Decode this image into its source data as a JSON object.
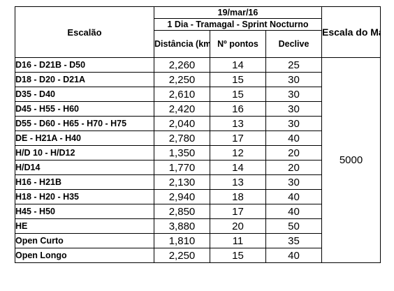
{
  "header": {
    "escalao": "Escalão",
    "date": "19/mar/16",
    "event": "1 Dia - Tramagal - Sprint Nocturno",
    "distancia": "Distância (km)",
    "pontos": "Nº pontos",
    "declive": "Declive",
    "escala": "Escala do Mapa"
  },
  "escala_value": "5000",
  "rows": [
    {
      "escalao": "D16 - D21B - D50",
      "distancia": "2,260",
      "pontos": "14",
      "declive": "25"
    },
    {
      "escalao": "D18 - D20 - D21A",
      "distancia": "2,250",
      "pontos": "15",
      "declive": "30"
    },
    {
      "escalao": "D35 - D40",
      "distancia": "2,610",
      "pontos": "15",
      "declive": "30"
    },
    {
      "escalao": "D45 - H55 - H60",
      "distancia": "2,420",
      "pontos": "16",
      "declive": "30"
    },
    {
      "escalao": "D55 - D60 - H65 - H70 - H75",
      "distancia": "2,040",
      "pontos": "13",
      "declive": "30"
    },
    {
      "escalao": "DE - H21A - H40",
      "distancia": "2,780",
      "pontos": "17",
      "declive": "40"
    },
    {
      "escalao": "H/D 10 - H/D12",
      "distancia": "1,350",
      "pontos": "12",
      "declive": "20"
    },
    {
      "escalao": "H/D14",
      "distancia": "1,770",
      "pontos": "14",
      "declive": "20"
    },
    {
      "escalao": "H16 - H21B",
      "distancia": "2,130",
      "pontos": "13",
      "declive": "30"
    },
    {
      "escalao": "H18 - H20 - H35",
      "distancia": "2,940",
      "pontos": "18",
      "declive": "40"
    },
    {
      "escalao": "H45 - H50",
      "distancia": "2,850",
      "pontos": "17",
      "declive": "40"
    },
    {
      "escalao": "HE",
      "distancia": "3,880",
      "pontos": "20",
      "declive": "50"
    },
    {
      "escalao": "Open Curto",
      "distancia": "1,810",
      "pontos": "11",
      "declive": "35"
    },
    {
      "escalao": "Open Longo",
      "distancia": "2,250",
      "pontos": "15",
      "declive": "40"
    }
  ]
}
